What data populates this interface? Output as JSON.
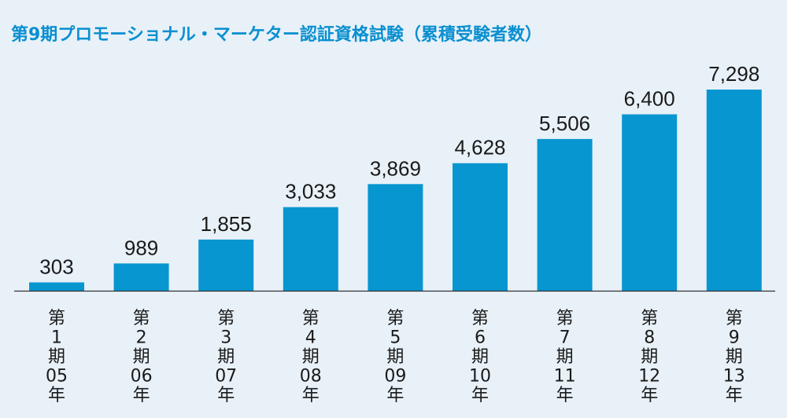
{
  "title": "第9期プロモーショナル・マーケター認証資格試験（累積受験者数）",
  "colors": {
    "background": "#e8f1f8",
    "title": "#0a8fd0",
    "bar": "#0896d0",
    "axis": "#333333",
    "text": "#1a1a1a"
  },
  "chart_data": {
    "type": "bar",
    "title": "第9期プロモーショナル・マーケター認証資格試験（累積受験者数）",
    "categories": [
      "第1期05年",
      "第2期06年",
      "第3期07年",
      "第4期08年",
      "第5期09年",
      "第6期10年",
      "第7期11年",
      "第8期12年",
      "第9期13年"
    ],
    "category_lines": [
      [
        "第",
        "1",
        "期",
        "05",
        "年"
      ],
      [
        "第",
        "2",
        "期",
        "06",
        "年"
      ],
      [
        "第",
        "3",
        "期",
        "07",
        "年"
      ],
      [
        "第",
        "4",
        "期",
        "08",
        "年"
      ],
      [
        "第",
        "5",
        "期",
        "09",
        "年"
      ],
      [
        "第",
        "6",
        "期",
        "10",
        "年"
      ],
      [
        "第",
        "7",
        "期",
        "11",
        "年"
      ],
      [
        "第",
        "8",
        "期",
        "12",
        "年"
      ],
      [
        "第",
        "9",
        "期",
        "13",
        "年"
      ]
    ],
    "values": [
      303,
      989,
      1855,
      3033,
      3869,
      4628,
      5506,
      6400,
      7298
    ],
    "value_labels": [
      "303",
      "989",
      "1,855",
      "3,033",
      "3,869",
      "4,628",
      "5,506",
      "6,400",
      "7,298"
    ],
    "xlabel": "",
    "ylabel": "",
    "ylim": [
      0,
      7298
    ],
    "grid": false,
    "legend": "none"
  }
}
